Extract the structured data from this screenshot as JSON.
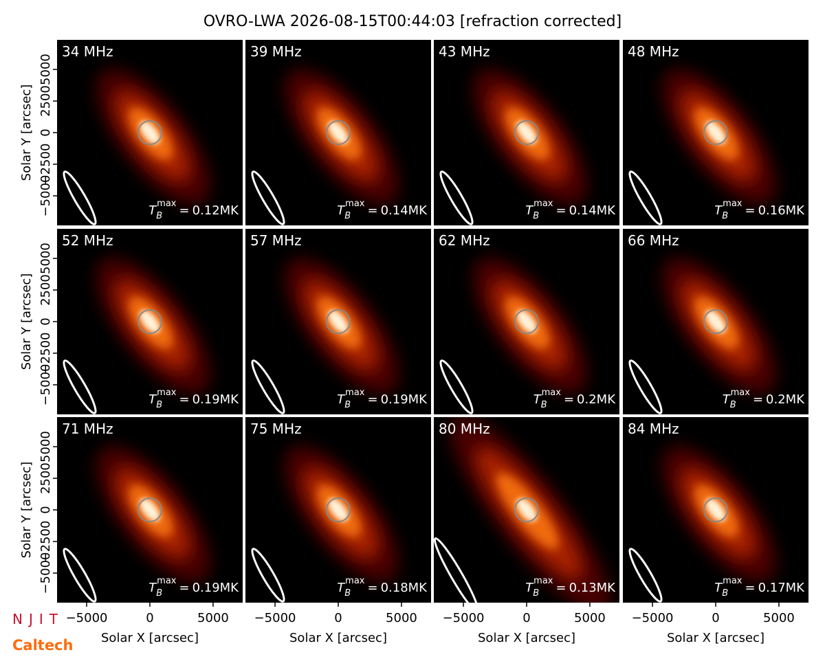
{
  "chart_data": {
    "type": "image",
    "title": "OVRO-LWA 2026-08-15T00:44:03 [refraction corrected]",
    "xlabel": "Solar X [arcsec]",
    "ylabel": "Solar Y [arcsec]",
    "xlim": [
      -7340,
      7340
    ],
    "ylim": [
      -7340,
      7340
    ],
    "xticks": [
      {
        "value": -5000,
        "label": "−5000"
      },
      0,
      5000
    ],
    "yticks": [
      {
        "value": -5000,
        "label": "−5000"
      },
      {
        "value": -2500,
        "label": "−2500"
      },
      0,
      2500,
      5000
    ],
    "tb_symbol": {
      "main": "T",
      "sub": "B",
      "sup": "max",
      "eq": "="
    },
    "panels": [
      {
        "label": "34 MHz",
        "tb_max": 0.12,
        "tb_max_label": "0.12MK"
      },
      {
        "label": "39 MHz",
        "tb_max": 0.14,
        "tb_max_label": "0.14MK"
      },
      {
        "label": "43 MHz",
        "tb_max": 0.14,
        "tb_max_label": "0.14MK"
      },
      {
        "label": "48 MHz",
        "tb_max": 0.16,
        "tb_max_label": "0.16MK"
      },
      {
        "label": "52 MHz",
        "tb_max": 0.19,
        "tb_max_label": "0.19MK"
      },
      {
        "label": "57 MHz",
        "tb_max": 0.19,
        "tb_max_label": "0.19MK"
      },
      {
        "label": "62 MHz",
        "tb_max": 0.2,
        "tb_max_label": "0.2MK"
      },
      {
        "label": "66 MHz",
        "tb_max": 0.2,
        "tb_max_label": "0.2MK"
      },
      {
        "label": "71 MHz",
        "tb_max": 0.19,
        "tb_max_label": "0.19MK"
      },
      {
        "label": "75 MHz",
        "tb_max": 0.18,
        "tb_max_label": "0.18MK"
      },
      {
        "label": "80 MHz",
        "tb_max": 0.13,
        "tb_max_label": "0.13MK"
      },
      {
        "label": "84 MHz",
        "tb_max": 0.17,
        "tb_max_label": "0.17MK"
      }
    ],
    "logos": [
      "NJIT",
      "Caltech"
    ]
  }
}
